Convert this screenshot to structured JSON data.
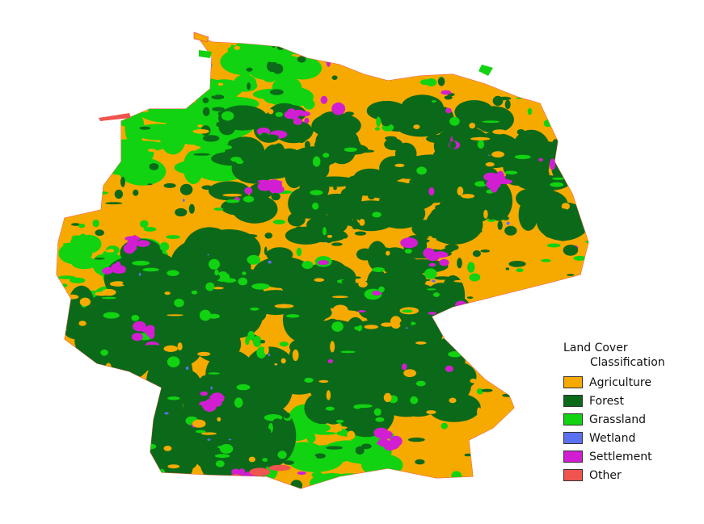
{
  "legend": {
    "title": "Land Cover",
    "subtitle": "Classification",
    "classes": [
      {
        "label": "Agriculture",
        "color": "#f6aa00"
      },
      {
        "label": "Forest",
        "color": "#0b6a19"
      },
      {
        "label": "Grassland",
        "color": "#11d311"
      },
      {
        "label": "Wetland",
        "color": "#5b71f0"
      },
      {
        "label": "Settlement",
        "color": "#d21ed2"
      },
      {
        "label": "Other",
        "color": "#f0544f"
      }
    ]
  },
  "colors": {
    "background": "#ffffff"
  }
}
